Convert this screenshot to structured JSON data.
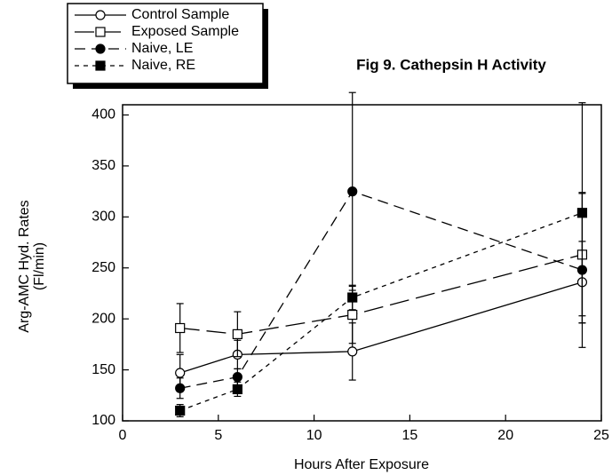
{
  "chart_data": {
    "type": "line",
    "title": "Fig 9.  Cathepsin H Activity",
    "xlabel": "Hours After Exposure",
    "ylabel": [
      "Arg-AMC Hyd. Rates",
      "(Fl/min)"
    ],
    "xlim": [
      0,
      25
    ],
    "xticks": [
      0,
      5,
      10,
      15,
      20,
      25
    ],
    "ylim": [
      100,
      410
    ],
    "yticks": [
      100,
      150,
      200,
      250,
      300,
      350,
      400
    ],
    "legend": "top-left",
    "series": [
      {
        "name": "Control Sample",
        "color": "#000000",
        "line": "solid",
        "marker": "open-circle",
        "x": [
          3,
          6,
          12,
          24
        ],
        "values": [
          147,
          165,
          168,
          236
        ],
        "errors": [
          18,
          14,
          28,
          40
        ]
      },
      {
        "name": "Exposed Sample",
        "color": "#000000",
        "line": "long",
        "marker": "open-square",
        "x": [
          3,
          6,
          12,
          24
        ],
        "values": [
          191,
          185,
          204,
          263
        ],
        "errors": [
          24,
          22,
          28,
          60
        ]
      },
      {
        "name": "Naive, LE",
        "color": "#000000",
        "line": "medium",
        "marker": "filled-circle",
        "x": [
          3,
          6,
          12,
          24
        ],
        "values": [
          132,
          143,
          325,
          248
        ],
        "errors": [
          10,
          8,
          97,
          76
        ]
      },
      {
        "name": "Naive, RE",
        "color": "#000000",
        "line": "short",
        "marker": "filled-square",
        "x": [
          3,
          6,
          12,
          24
        ],
        "values": [
          110,
          131,
          221,
          304
        ],
        "errors": [
          6,
          7,
          12,
          108
        ]
      }
    ]
  }
}
